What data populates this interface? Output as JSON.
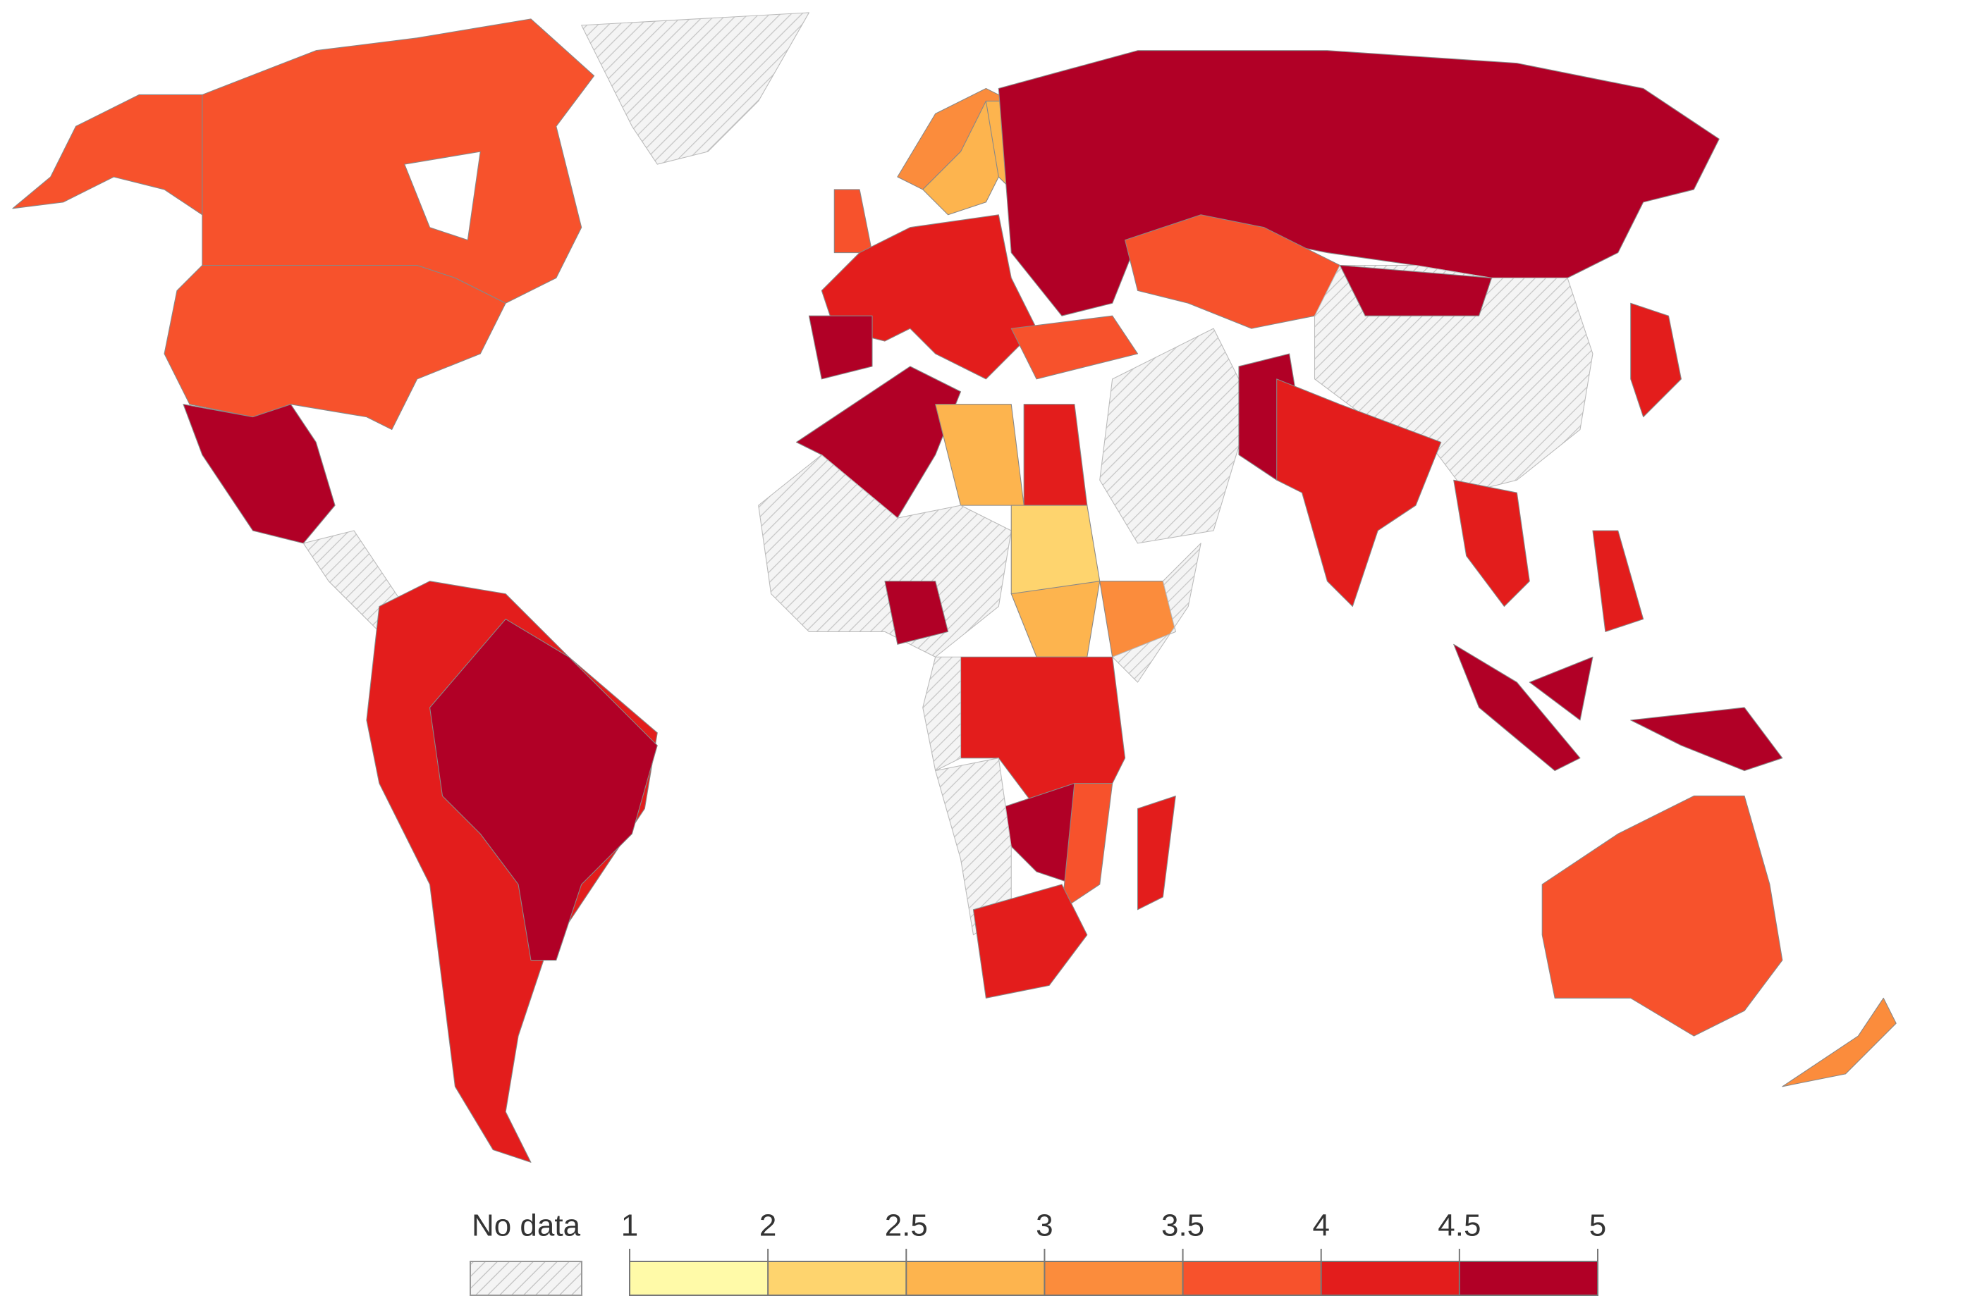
{
  "chart_data": {
    "type": "choropleth",
    "legend": {
      "no_data_label": "No data",
      "ticks": [
        1,
        2,
        2.5,
        3,
        3.5,
        4,
        4.5,
        5
      ],
      "colors": [
        "#fffaa8",
        "#fed46e",
        "#fdb44e",
        "#fb8c3c",
        "#f7522c",
        "#e31d1c",
        "#b10026"
      ]
    }
  }
}
